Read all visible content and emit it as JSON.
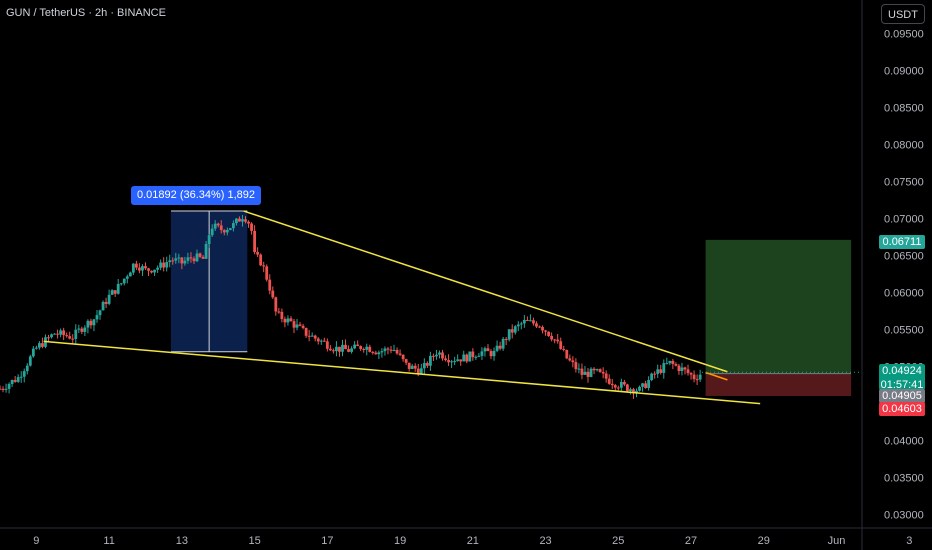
{
  "header": {
    "title": "GUN / TetherUS · 2h · BINANCE",
    "currency": "USDT"
  },
  "measure": {
    "label": "0.01892 (36.34%) 1,892"
  },
  "price_tags": {
    "target": "0.06711",
    "last": "0.04924",
    "countdown": "01:57:41",
    "entry": "0.04905",
    "stop": "0.04603"
  },
  "colors": {
    "up": "#26a69a",
    "down": "#ef5350",
    "trendline": "#f0e442",
    "profit_zone": "#1e4620",
    "loss_zone": "#5a1a1e",
    "measure_fill": "#0c2352",
    "axis_text": "#b2b5be"
  },
  "chart_data": {
    "type": "candlestick",
    "y_ticks": [
      "0.09500",
      "0.09000",
      "0.08500",
      "0.08000",
      "0.07500",
      "0.07000",
      "0.06500",
      "0.06000",
      "0.05500",
      "0.05000",
      "0.04500",
      "0.04000",
      "0.03500",
      "0.03000"
    ],
    "x_ticks": [
      "9",
      "11",
      "13",
      "15",
      "17",
      "19",
      "21",
      "23",
      "25",
      "27",
      "29",
      "Jun",
      "3"
    ],
    "ylim": [
      0.0282,
      0.0995
    ],
    "price_path": [
      [
        8.0,
        0.047
      ],
      [
        8.5,
        0.0485
      ],
      [
        9.0,
        0.0525
      ],
      [
        9.5,
        0.0545
      ],
      [
        10.0,
        0.054
      ],
      [
        10.3,
        0.0555
      ],
      [
        10.6,
        0.0565
      ],
      [
        11.0,
        0.0595
      ],
      [
        11.3,
        0.061
      ],
      [
        11.7,
        0.064
      ],
      [
        12.0,
        0.063
      ],
      [
        12.4,
        0.0635
      ],
      [
        12.7,
        0.0645
      ],
      [
        13.0,
        0.064
      ],
      [
        13.3,
        0.0648
      ],
      [
        13.6,
        0.0645
      ],
      [
        13.8,
        0.069
      ],
      [
        14.1,
        0.0685
      ],
      [
        14.4,
        0.069
      ],
      [
        14.7,
        0.0705
      ],
      [
        14.9,
        0.069
      ],
      [
        15.0,
        0.065
      ],
      [
        15.2,
        0.064
      ],
      [
        15.4,
        0.061
      ],
      [
        15.6,
        0.057
      ],
      [
        16.0,
        0.056
      ],
      [
        16.4,
        0.0545
      ],
      [
        16.8,
        0.0535
      ],
      [
        17.2,
        0.0525
      ],
      [
        17.6,
        0.0522
      ],
      [
        18.0,
        0.0528
      ],
      [
        18.4,
        0.052
      ],
      [
        18.8,
        0.0525
      ],
      [
        19.2,
        0.05
      ],
      [
        19.6,
        0.0495
      ],
      [
        20.0,
        0.052
      ],
      [
        20.4,
        0.051
      ],
      [
        20.8,
        0.0512
      ],
      [
        21.2,
        0.052
      ],
      [
        21.6,
        0.0518
      ],
      [
        22.0,
        0.0545
      ],
      [
        22.4,
        0.056
      ],
      [
        22.8,
        0.0558
      ],
      [
        23.2,
        0.054
      ],
      [
        23.6,
        0.051
      ],
      [
        24.0,
        0.049
      ],
      [
        24.4,
        0.0492
      ],
      [
        24.8,
        0.048
      ],
      [
        25.2,
        0.0472
      ],
      [
        25.6,
        0.0468
      ],
      [
        26.0,
        0.049
      ],
      [
        26.4,
        0.0505
      ],
      [
        26.8,
        0.0495
      ],
      [
        27.1,
        0.0485
      ],
      [
        27.3,
        0.0492
      ]
    ],
    "annotations": {
      "upper_trendline": [
        [
          14.7,
          0.071
        ],
        [
          28.0,
          0.0493
        ]
      ],
      "lower_trendline": [
        [
          9.2,
          0.0534
        ],
        [
          28.9,
          0.045
        ]
      ],
      "measure_box": {
        "x": [
          12.7,
          14.8
        ],
        "y": [
          0.052,
          0.071
        ]
      },
      "position": {
        "x": [
          27.4,
          31.4
        ],
        "entry": 0.04905,
        "target": 0.06711,
        "stop": 0.04603
      }
    }
  }
}
